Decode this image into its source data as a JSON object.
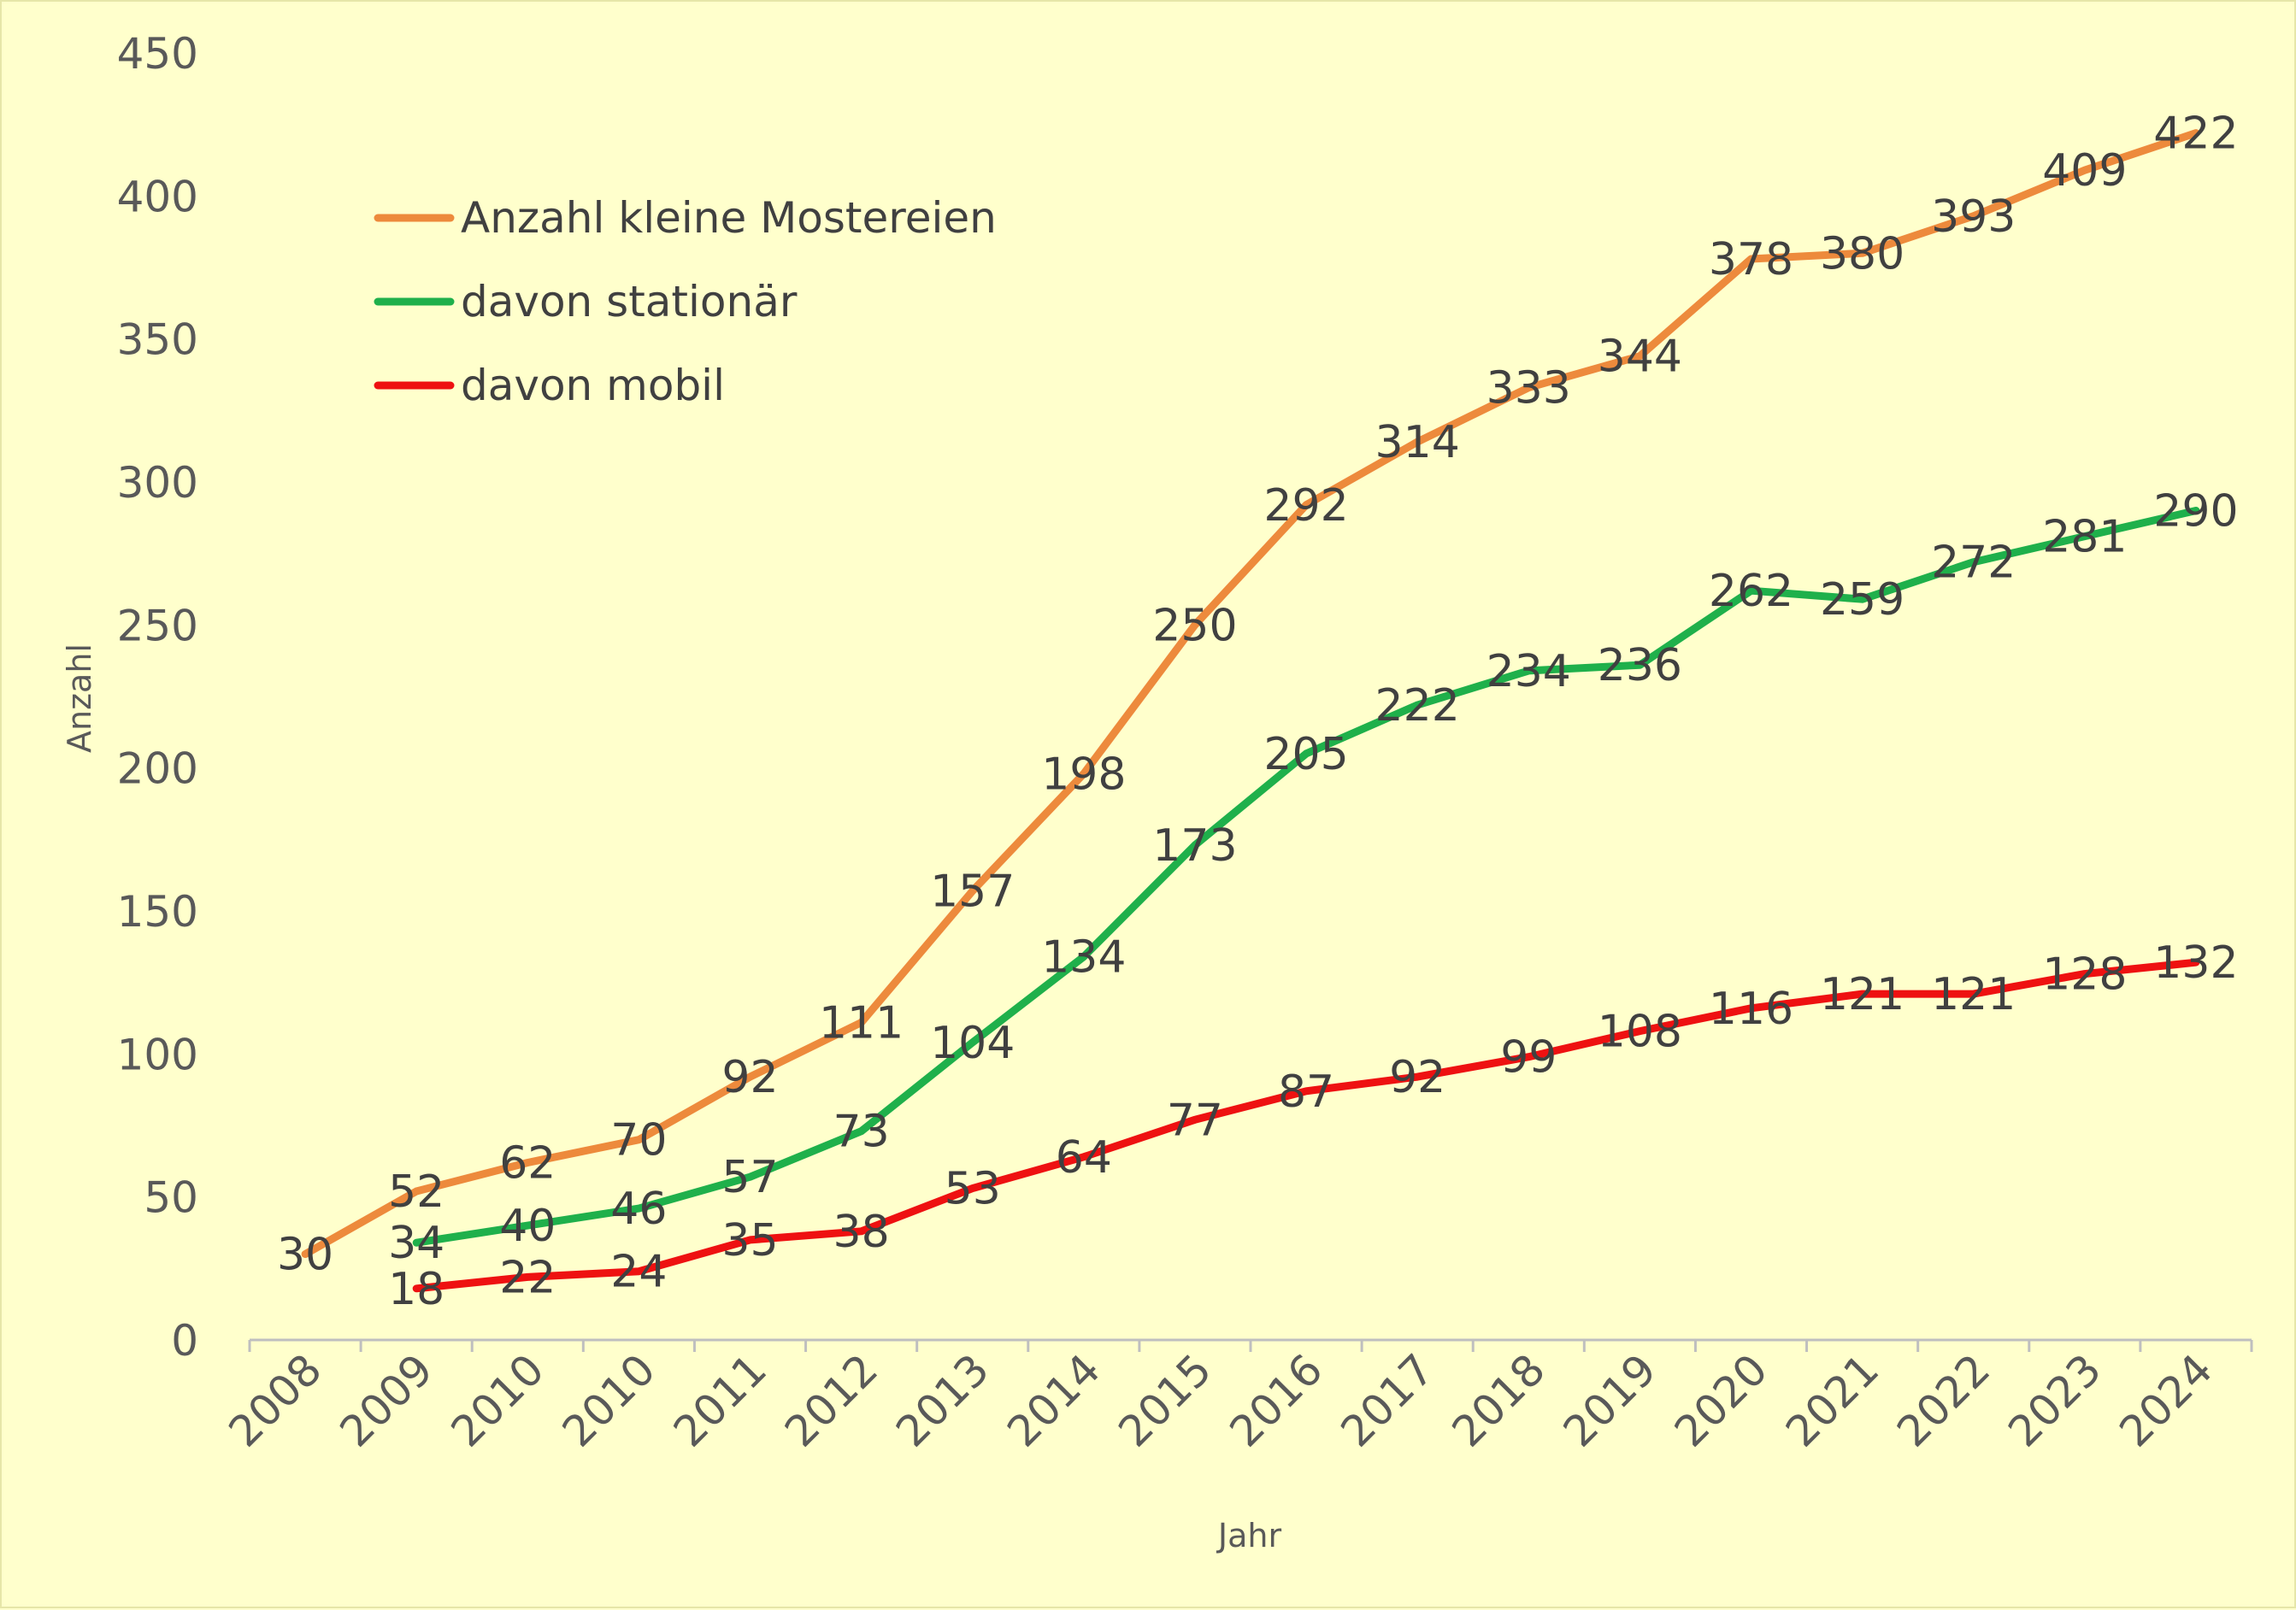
{
  "chart_data": {
    "type": "line",
    "categories": [
      "2008",
      "2009",
      "2010",
      "2010",
      "2011",
      "2012",
      "2013",
      "2014",
      "2015",
      "2016",
      "2017",
      "2018",
      "2019",
      "2020",
      "2021",
      "2022",
      "2023",
      "2024"
    ],
    "series": [
      {
        "name": "Anzahl kleine Mostereien",
        "color": "#ed8a3c",
        "values": [
          30,
          52,
          62,
          70,
          92,
          111,
          157,
          198,
          250,
          292,
          314,
          333,
          344,
          378,
          380,
          393,
          409,
          422
        ]
      },
      {
        "name": "davon stationär",
        "color": "#1fb04b",
        "values": [
          null,
          34,
          40,
          46,
          57,
          73,
          104,
          134,
          173,
          205,
          222,
          234,
          236,
          262,
          259,
          272,
          281,
          290
        ]
      },
      {
        "name": "davon mobil",
        "color": "#ee1111",
        "values": [
          null,
          18,
          22,
          24,
          35,
          38,
          53,
          64,
          77,
          87,
          92,
          99,
          108,
          116,
          121,
          121,
          128,
          132
        ]
      }
    ],
    "xlabel": "Jahr",
    "ylabel": "Anzahl",
    "ylim": [
      0,
      450
    ],
    "yticks": [
      0,
      50,
      100,
      150,
      200,
      250,
      300,
      350,
      400,
      450
    ],
    "grid": false,
    "legend_position": "top-left"
  }
}
